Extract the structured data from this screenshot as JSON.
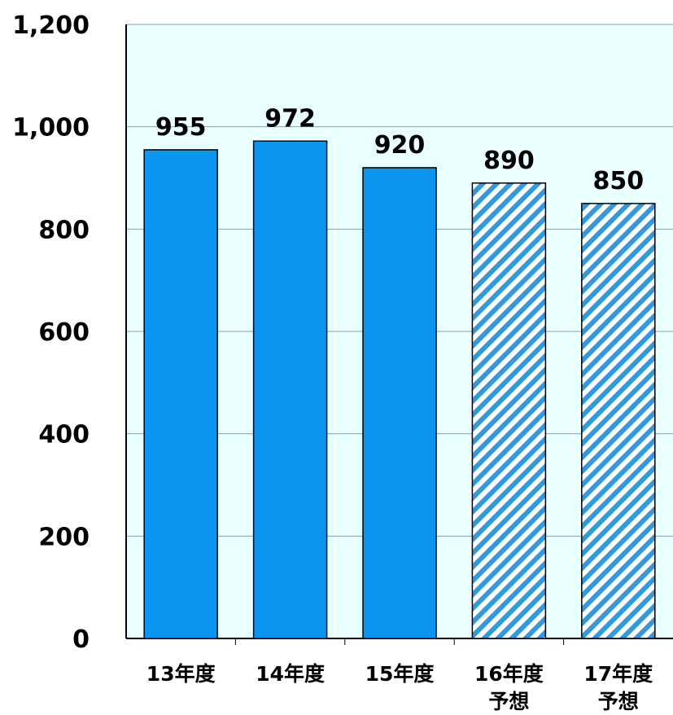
{
  "chart_data": {
    "type": "bar",
    "categories": [
      [
        "13年度"
      ],
      [
        "14年度"
      ],
      [
        "15年度"
      ],
      [
        "16年度",
        "予想"
      ],
      [
        "17年度",
        "予想"
      ]
    ],
    "values": [
      955,
      972,
      920,
      890,
      850
    ],
    "data_labels": [
      "955",
      "972",
      "920",
      "890",
      "850"
    ],
    "forecast": [
      false,
      false,
      false,
      true,
      true
    ],
    "y_ticks": [
      "0",
      "200",
      "400",
      "600",
      "800",
      "1,000",
      "1,200"
    ],
    "ylim": [
      0,
      1200
    ],
    "grid": true,
    "colors": {
      "bar": "#0a96f0",
      "forecast_stripe": "#3399dd",
      "forecast_bg": "#ffffff",
      "plot_bg": "#eaffff",
      "gridline": "#7f9fbf"
    }
  }
}
